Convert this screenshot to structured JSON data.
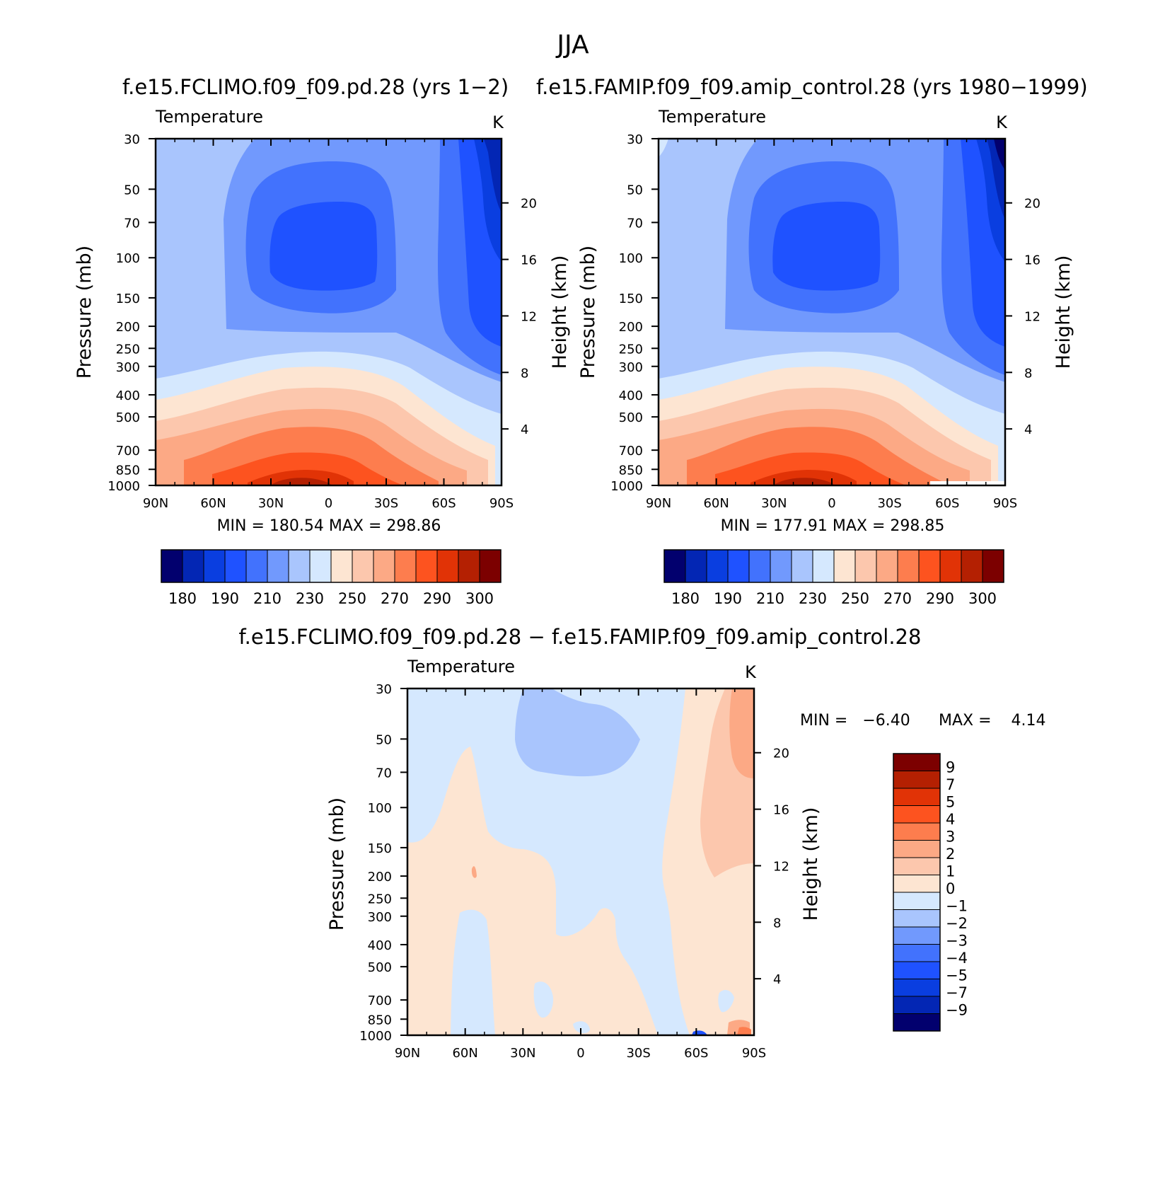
{
  "figure": {
    "title": "JJA"
  },
  "colors": {
    "t_palette": [
      "#02006e",
      "#0326b4",
      "#0a3ee0",
      "#1f52ff",
      "#4272fd",
      "#7199fd",
      "#a9c5fd",
      "#d5e8fe",
      "#fde5d2",
      "#fcc7ad",
      "#fca985",
      "#fd7d4e",
      "#fd531f",
      "#e13306",
      "#b42002",
      "#7c0000"
    ],
    "d_palette": [
      "#02006e",
      "#0326b4",
      "#0a3ee0",
      "#1f52ff",
      "#4272fd",
      "#7199fd",
      "#a9c5fd",
      "#d5e8fe",
      "#fde5d2",
      "#fcc7ad",
      "#fca985",
      "#fd7d4e",
      "#fd531f",
      "#e13306",
      "#b42002",
      "#7c0000"
    ]
  },
  "panels": [
    {
      "id": "p1",
      "title": "f.e15.FCLIMO.f09_f09.pd.28 (yrs 1−2)",
      "variable": "Temperature",
      "units": "K",
      "ylabel": "Pressure (mb)",
      "ylabel_right": "Height (km)",
      "stats": "MIN = 180.54   MAX = 298.86"
    },
    {
      "id": "p2",
      "title": "f.e15.FAMIP.f09_f09.amip_control.28 (yrs 1980−1999)",
      "variable": "Temperature",
      "units": "K",
      "ylabel": "Pressure (mb)",
      "ylabel_right": "Height (km)",
      "stats": "MIN = 177.91   MAX = 298.85"
    },
    {
      "id": "p3",
      "title": "f.e15.FCLIMO.f09_f09.pd.28 − f.e15.FAMIP.f09_f09.amip_control.28",
      "variable": "Temperature",
      "units": "K",
      "ylabel": "Pressure (mb)",
      "ylabel_right": "Height (km)",
      "stats_min": "MIN =   −6.40",
      "stats_max": "MAX =    4.14"
    }
  ],
  "chart_data": [
    {
      "type": "heatmap",
      "title": "f.e15.FCLIMO.f09_f09.pd.28 (yrs 1−2)",
      "variable": "Temperature",
      "units": "K",
      "xlabel": "",
      "ylabel": "Pressure (mb)",
      "y2label": "Height (km)",
      "x_ticks": [
        "90N",
        "60N",
        "30N",
        "0",
        "30S",
        "60S",
        "90S"
      ],
      "x_range": [
        90,
        -90
      ],
      "y_ticks": [
        "30",
        "50",
        "70",
        "100",
        "150",
        "200",
        "250",
        "300",
        "400",
        "500",
        "700",
        "850",
        "1000"
      ],
      "y_range_mb": [
        1000,
        30
      ],
      "y2_ticks": [
        "20",
        "16",
        "12",
        "8",
        "4"
      ],
      "min": 180.54,
      "max": 298.86,
      "colorbar_labels": [
        "180",
        "190",
        "210",
        "230",
        "250",
        "270",
        "290",
        "300"
      ],
      "contour_levels": [
        180,
        185,
        190,
        200,
        210,
        220,
        230,
        240,
        250,
        260,
        270,
        280,
        290,
        295,
        300
      ]
    },
    {
      "type": "heatmap",
      "title": "f.e15.FAMIP.f09_f09.amip_control.28 (yrs 1980−1999)",
      "variable": "Temperature",
      "units": "K",
      "xlabel": "",
      "ylabel": "Pressure (mb)",
      "y2label": "Height (km)",
      "x_ticks": [
        "90N",
        "60N",
        "30N",
        "0",
        "30S",
        "60S",
        "90S"
      ],
      "x_range": [
        90,
        -90
      ],
      "y_ticks": [
        "30",
        "50",
        "70",
        "100",
        "150",
        "200",
        "250",
        "300",
        "400",
        "500",
        "700",
        "850",
        "1000"
      ],
      "y_range_mb": [
        1000,
        30
      ],
      "y2_ticks": [
        "20",
        "16",
        "12",
        "8",
        "4"
      ],
      "min": 177.91,
      "max": 298.85,
      "colorbar_labels": [
        "180",
        "190",
        "210",
        "230",
        "250",
        "270",
        "290",
        "300"
      ],
      "contour_levels": [
        180,
        185,
        190,
        200,
        210,
        220,
        230,
        240,
        250,
        260,
        270,
        280,
        290,
        295,
        300
      ]
    },
    {
      "type": "heatmap",
      "title": "f.e15.FCLIMO.f09_f09.pd.28 − f.e15.FAMIP.f09_f09.amip_control.28",
      "variable": "Temperature",
      "units": "K",
      "xlabel": "",
      "ylabel": "Pressure (mb)",
      "y2label": "Height (km)",
      "x_ticks": [
        "90N",
        "60N",
        "30N",
        "0",
        "30S",
        "60S",
        "90S"
      ],
      "x_range": [
        90,
        -90
      ],
      "y_ticks": [
        "30",
        "50",
        "70",
        "100",
        "150",
        "200",
        "250",
        "300",
        "400",
        "500",
        "700",
        "850",
        "1000"
      ],
      "y_range_mb": [
        1000,
        30
      ],
      "y2_ticks": [
        "20",
        "16",
        "12",
        "8",
        "4"
      ],
      "min": -6.4,
      "max": 4.14,
      "colorbar_labels": [
        "9",
        "7",
        "5",
        "4",
        "3",
        "2",
        "1",
        "0",
        "−1",
        "−2",
        "−3",
        "−4",
        "−5",
        "−7",
        "−9"
      ],
      "contour_levels": [
        -9,
        -7,
        -5,
        -4,
        -3,
        -2,
        -1,
        0,
        1,
        2,
        3,
        4,
        5,
        7,
        9
      ]
    }
  ]
}
